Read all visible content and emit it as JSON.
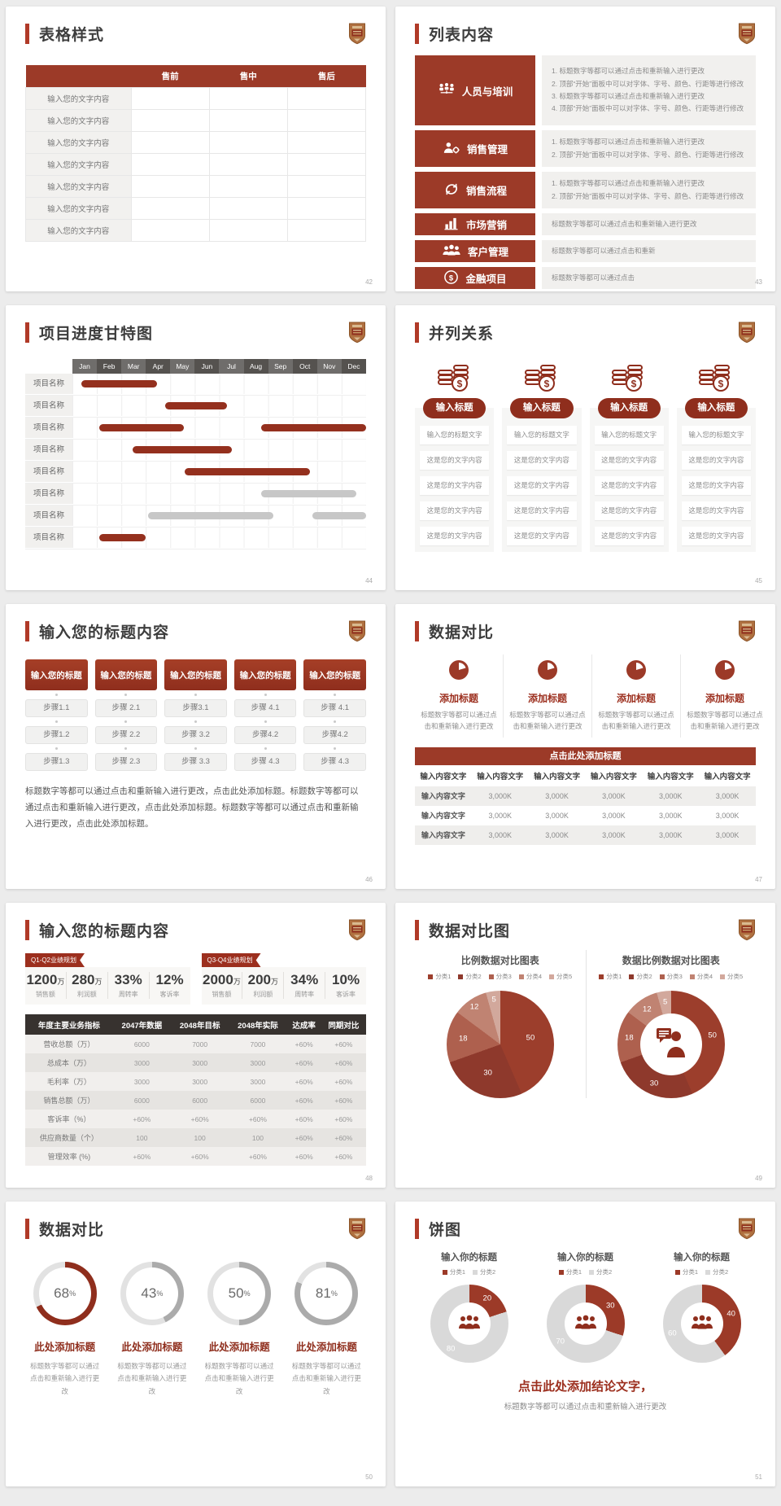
{
  "colors": {
    "primary": "#9c3a28",
    "primary_dark": "#8f2e1d",
    "accent_bar": "#b03a28",
    "gantt_red": "#94301e",
    "gantt_gray": "#c7c7c7",
    "month_dark": "#55524f",
    "month_light": "#6f6d6b",
    "pie_palette": [
      "#9c3e2c",
      "#8e392c",
      "#ae604e",
      "#c08372",
      "#d2a89c"
    ],
    "gauge_gray": "#ababab",
    "donut_gray": "#d9d9d9"
  },
  "slide42": {
    "title": "表格样式",
    "page": "42",
    "table": {
      "headers": [
        "",
        "售前",
        "售中",
        "售后"
      ],
      "rows": [
        "输入您的文字内容",
        "输入您的文字内容",
        "输入您的文字内容",
        "输入您的文字内容",
        "输入您的文字内容",
        "输入您的文字内容",
        "输入您的文字内容"
      ]
    }
  },
  "slide43": {
    "title": "列表内容",
    "page": "43",
    "items": [
      {
        "icon": "team-icon",
        "label": "人员与培训",
        "numbered": true,
        "size": "tall",
        "lines": [
          "标题数字等都可以通过点击和重新输入进行更改",
          "顶部“开始”面板中可以对字体、字号、颜色、行距等进行修改",
          "标题数字等都可以通过点击和重新输入进行更改",
          "顶部“开始”面板中可以对字体、字号、颜色、行距等进行修改"
        ]
      },
      {
        "icon": "sales-manage-icon",
        "label": "销售管理",
        "numbered": true,
        "size": "mid",
        "lines": [
          "标题数字等都可以通过点击和重新输入进行更改",
          "顶部“开始”面板中可以对字体、字号、颜色、行距等进行修改"
        ]
      },
      {
        "icon": "sales-process-icon",
        "label": "销售流程",
        "numbered": true,
        "size": "mid",
        "lines": [
          "标题数字等都可以通过点击和重新输入进行更改",
          "顶部“开始”面板中可以对字体、字号、颜色、行距等进行修改"
        ]
      },
      {
        "icon": "marketing-icon",
        "label": "市场营销",
        "numbered": false,
        "size": "sm",
        "lines": [
          "标题数字等都可以通过点击和重新输入进行更改"
        ]
      },
      {
        "icon": "customers-icon",
        "label": "客户管理",
        "numbered": false,
        "size": "sm",
        "lines": [
          "标题数字等都可以通过点击和重新"
        ]
      },
      {
        "icon": "finance-icon",
        "label": "金融项目",
        "numbered": false,
        "size": "sm",
        "lines": [
          "标题数字等都可以通过点击"
        ]
      }
    ]
  },
  "slide44": {
    "title": "项目进度甘特图",
    "page": "44",
    "months": [
      "Jan",
      "Feb",
      "Mar",
      "Apr",
      "May",
      "Jun",
      "Jul",
      "Aug",
      "Sep",
      "Oct",
      "Nov",
      "Dec"
    ],
    "rows": [
      {
        "label": "项目名称",
        "bars": [
          {
            "s": 0.35,
            "e": 3.45,
            "c": "red"
          }
        ]
      },
      {
        "label": "项目名称",
        "bars": [
          {
            "s": 3.8,
            "e": 6.3,
            "c": "red"
          }
        ]
      },
      {
        "label": "项目名称",
        "bars": [
          {
            "s": 1.1,
            "e": 4.55,
            "c": "red"
          },
          {
            "s": 7.7,
            "e": 12,
            "c": "red"
          }
        ]
      },
      {
        "label": "项目名称",
        "bars": [
          {
            "s": 2.45,
            "e": 6.5,
            "c": "red"
          }
        ]
      },
      {
        "label": "项目名称",
        "bars": [
          {
            "s": 4.6,
            "e": 9.7,
            "c": "red"
          }
        ]
      },
      {
        "label": "项目名称",
        "bars": [
          {
            "s": 7.7,
            "e": 11.6,
            "c": "gray"
          }
        ]
      },
      {
        "label": "项目名称",
        "bars": [
          {
            "s": 3.1,
            "e": 8.2,
            "c": "gray"
          },
          {
            "s": 9.8,
            "e": 12,
            "c": "gray"
          }
        ]
      },
      {
        "label": "项目名称",
        "bars": [
          {
            "s": 1.1,
            "e": 3.0,
            "c": "red"
          }
        ]
      }
    ]
  },
  "slide45": {
    "title": "并列关系",
    "page": "45",
    "col_count": 4,
    "col_title": "输入标题",
    "icon": "coins-icon",
    "cards": [
      "输入您的标题文字",
      "这是您的文字内容",
      "这是您的文字内容",
      "这是您的文字内容",
      "这是您的文字内容"
    ]
  },
  "slide46": {
    "title": "输入您的标题内容",
    "page": "46",
    "col_header": "输入您的标题",
    "columns": [
      [
        "步骤1.1",
        "步骤1.2",
        "步骤1.3"
      ],
      [
        "步骤 2.1",
        "步骤 2.2",
        "步骤 2.3"
      ],
      [
        "步骤3.1",
        "步骤 3.2",
        "步骤 3.3"
      ],
      [
        "步骤 4.1",
        "步骤4.2",
        "步骤 4.3"
      ],
      [
        "步骤 4.1",
        "步骤4.2",
        "步骤 4.3"
      ]
    ],
    "paragraph": "标题数字等都可以通过点击和重新输入进行更改，点击此处添加标题。标题数字等都可以通过点击和重新输入进行更改，点击此处添加标题。标题数字等都可以通过点击和重新输入进行更改，点击此处添加标题。"
  },
  "slide47": {
    "title": "数据对比",
    "page": "47",
    "feature_count": 4,
    "feature_icon": "pie-icon",
    "feature_title": "添加标题",
    "feature_desc": "标题数字等都可以通过点击和重新输入进行更改",
    "banner": "点击此处添加标题",
    "table": {
      "header_cell": "输入内容文字",
      "first_col": "输入内容文字",
      "value": "3,000K",
      "cols": 6,
      "data_rows": 3
    }
  },
  "slide48": {
    "title": "输入您的标题内容",
    "page": "48",
    "groups": [
      {
        "tag": "Q1-Q2业绩规划",
        "stats": [
          {
            "value": "1200",
            "unit": "万",
            "label": "销售额"
          },
          {
            "value": "280",
            "unit": "万",
            "label": "利润额"
          },
          {
            "value": "33%",
            "unit": "",
            "label": "周转率"
          },
          {
            "value": "12%",
            "unit": "",
            "label": "客诉率"
          }
        ]
      },
      {
        "tag": "Q3-Q4业绩规划",
        "stats": [
          {
            "value": "2000",
            "unit": "万",
            "label": "销售额"
          },
          {
            "value": "200",
            "unit": "万",
            "label": "利润额"
          },
          {
            "value": "34%",
            "unit": "",
            "label": "周转率"
          },
          {
            "value": "10%",
            "unit": "",
            "label": "客诉率"
          }
        ]
      }
    ],
    "table": {
      "headers": [
        "年度主要业务指标",
        "2047年数据",
        "2048年目标",
        "2048年实际",
        "达成率",
        "同期对比"
      ],
      "rows": [
        [
          "营收总额（万）",
          "6000",
          "7000",
          "7000",
          "+60%",
          "+60%"
        ],
        [
          "总成本（万）",
          "3000",
          "3000",
          "3000",
          "+60%",
          "+60%"
        ],
        [
          "毛利率（万）",
          "3000",
          "3000",
          "3000",
          "+60%",
          "+60%"
        ],
        [
          "销售总额（万）",
          "6000",
          "6000",
          "6000",
          "+60%",
          "+60%"
        ],
        [
          "客诉率（%）",
          "+60%",
          "+60%",
          "+60%",
          "+60%",
          "+60%"
        ],
        [
          "供应商数量（个）",
          "100",
          "100",
          "100",
          "+60%",
          "+60%"
        ],
        [
          "管理效率 (%)",
          "+60%",
          "+60%",
          "+60%",
          "+60%",
          "+60%"
        ]
      ]
    }
  },
  "slide49": {
    "title": "数据对比图",
    "page": "49",
    "chart_data": [
      {
        "type": "pie",
        "title": "比例数据对比图表",
        "categories": [
          "分类1",
          "分类2",
          "分类3",
          "分类4",
          "分类5"
        ],
        "values": [
          50,
          30,
          18,
          12,
          5
        ],
        "legend_position": "top"
      },
      {
        "type": "donut",
        "title": "数据比例数据对比图表",
        "categories": [
          "分类1",
          "分类2",
          "分类3",
          "分类4",
          "分类5"
        ],
        "values": [
          50,
          30,
          18,
          12,
          5
        ],
        "center_icon": "person-chat-icon",
        "legend_position": "top"
      }
    ]
  },
  "slide50": {
    "title": "数据对比",
    "page": "50",
    "item_title": "此处添加标题",
    "item_desc": "标题数字等都可以通过点击和重新输入进行更改",
    "gauges": [
      {
        "pct": 68,
        "color": "#8f2e1d"
      },
      {
        "pct": 43,
        "color": "#ababab"
      },
      {
        "pct": 50,
        "color": "#ababab"
      },
      {
        "pct": 81,
        "color": "#ababab"
      }
    ]
  },
  "slide51": {
    "title": "饼图",
    "page": "51",
    "col_title": "输入你的标题",
    "legend": [
      "分类1",
      "分类2"
    ],
    "center_icon": "group-icon",
    "chart_data": [
      {
        "type": "donut",
        "title": "输入你的标题",
        "categories": [
          "分类1",
          "分类2"
        ],
        "values": [
          20,
          80
        ]
      },
      {
        "type": "donut",
        "title": "输入你的标题",
        "categories": [
          "分类1",
          "分类2"
        ],
        "values": [
          30,
          70
        ]
      },
      {
        "type": "donut",
        "title": "输入你的标题",
        "categories": [
          "分类1",
          "分类2"
        ],
        "values": [
          40,
          60
        ]
      }
    ],
    "conclusion": "点击此处添加结论文字，",
    "conclusion_sub": "标题数字等都可以通过点击和重新输入进行更改"
  }
}
